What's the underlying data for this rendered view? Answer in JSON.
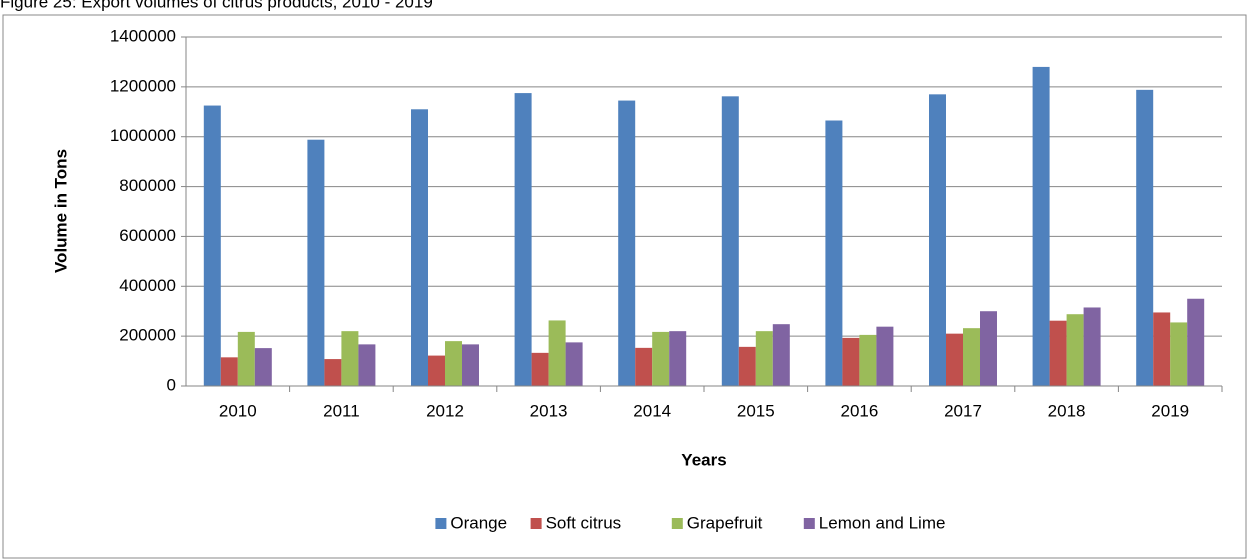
{
  "chart_data": {
    "type": "bar",
    "title": "Figure 25: Export volumes of citrus products, 2010 - 2019",
    "xlabel": "Years",
    "ylabel": "Volume in Tons",
    "categories": [
      "2010",
      "2011",
      "2012",
      "2013",
      "2014",
      "2015",
      "2016",
      "2017",
      "2018",
      "2019"
    ],
    "series": [
      {
        "name": "Orange",
        "color": "#4f81bd",
        "values": [
          1125000,
          988000,
          1110000,
          1175000,
          1145000,
          1162000,
          1065000,
          1170000,
          1280000,
          1188000
        ]
      },
      {
        "name": "Soft citrus",
        "color": "#c0504d",
        "values": [
          115000,
          108000,
          122000,
          133000,
          153000,
          157000,
          193000,
          210000,
          262000,
          295000
        ]
      },
      {
        "name": "Grapefruit",
        "color": "#9bbb59",
        "values": [
          217000,
          220000,
          180000,
          263000,
          217000,
          220000,
          205000,
          232000,
          288000,
          255000
        ]
      },
      {
        "name": "Lemon and Lime",
        "color": "#8064a2",
        "values": [
          152000,
          167000,
          167000,
          175000,
          220000,
          248000,
          238000,
          300000,
          315000,
          350000
        ]
      }
    ],
    "ylim": [
      0,
      1400000
    ],
    "yticks": [
      0,
      200000,
      400000,
      600000,
      800000,
      1000000,
      1200000,
      1400000
    ],
    "grid": true,
    "legend": "bottom"
  }
}
